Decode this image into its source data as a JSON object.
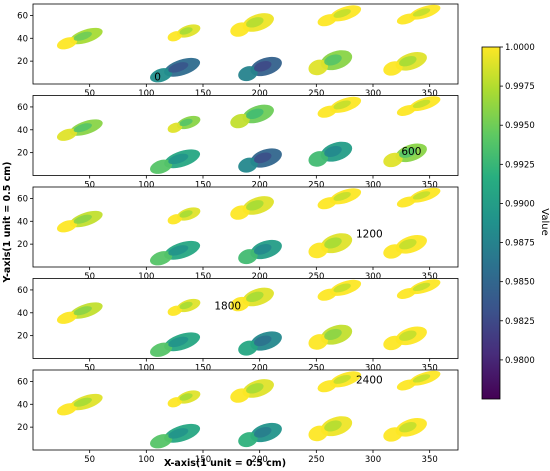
{
  "chart_data": {
    "type": "heatmap",
    "title": "",
    "xlabel": "X-axis(1 unit = 0.5 cm)",
    "ylabel": "Y-axis(1 unit = 0.5 cm)",
    "xlim": [
      0,
      375
    ],
    "ylim": [
      0,
      70
    ],
    "xticks": [
      "50",
      "100",
      "150",
      "200",
      "250",
      "300",
      "350"
    ],
    "yticks": [
      "20",
      "40",
      "60"
    ],
    "colorbar": {
      "label": "Value",
      "range": [
        0.9775,
        1.0
      ],
      "ticks": [
        "1.0000",
        "0.9975",
        "0.9950",
        "0.9925",
        "0.9900",
        "0.9875",
        "0.9850",
        "0.9825",
        "0.9800"
      ],
      "colormap": "viridis"
    },
    "panels": [
      {
        "label": "0",
        "label_x": 107,
        "label_y": 3
      },
      {
        "label": "600",
        "label_x": 325,
        "label_y": 18
      },
      {
        "label": "1200",
        "label_x": 285,
        "label_y": 26
      },
      {
        "label": "1800",
        "label_x": 160,
        "label_y": 43
      },
      {
        "label": "2400",
        "label_x": 285,
        "label_y": 58
      }
    ],
    "footprints": [
      {
        "name": "top-row-1",
        "x": [
          20,
          62
        ],
        "y": [
          32,
          48
        ]
      },
      {
        "name": "top-row-2",
        "x": [
          118,
          148
        ],
        "y": [
          38,
          52
        ]
      },
      {
        "name": "top-row-3",
        "x": [
          173,
          213
        ],
        "y": [
          42,
          62
        ]
      },
      {
        "name": "top-row-4",
        "x": [
          250,
          290
        ],
        "y": [
          52,
          68
        ]
      },
      {
        "name": "top-row-5",
        "x": [
          320,
          360
        ],
        "y": [
          54,
          68
        ]
      },
      {
        "name": "bottom-row-1",
        "x": [
          102,
          148
        ],
        "y": [
          3,
          22
        ]
      },
      {
        "name": "bottom-row-2",
        "x": [
          180,
          220
        ],
        "y": [
          3,
          24
        ]
      },
      {
        "name": "bottom-row-3",
        "x": [
          242,
          282
        ],
        "y": [
          8,
          30
        ]
      },
      {
        "name": "bottom-row-4",
        "x": [
          308,
          348
        ],
        "y": [
          8,
          28
        ]
      }
    ],
    "panel_values": [
      [
        0.997,
        0.999,
        0.9995,
        1.0,
        1.0,
        0.9855,
        0.9845,
        0.996,
        0.999
      ],
      [
        0.996,
        0.996,
        0.995,
        1.0,
        1.0,
        0.991,
        0.985,
        0.99,
        0.996
      ],
      [
        0.998,
        0.999,
        0.999,
        1.0,
        1.0,
        0.991,
        0.99,
        0.999,
        1.0
      ],
      [
        0.998,
        0.999,
        0.999,
        1.0,
        1.0,
        0.991,
        0.988,
        0.998,
        1.0
      ],
      [
        0.999,
        0.999,
        0.999,
        1.0,
        1.0,
        0.991,
        0.989,
        0.9995,
        1.0
      ]
    ]
  }
}
